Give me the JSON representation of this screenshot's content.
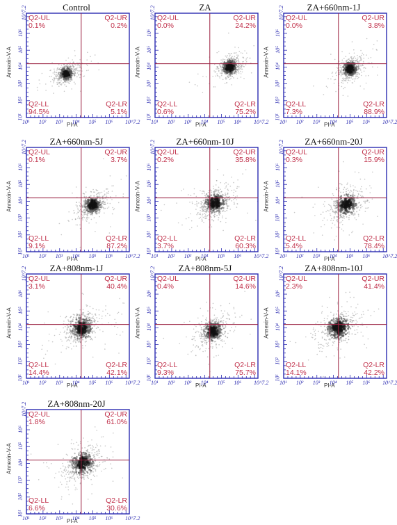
{
  "chart_data": [
    {
      "type": "scatter",
      "title": "Control",
      "xlabel": "PI-A",
      "ylabel": "Annexin-V-A",
      "center": [
        3.4,
        3.6
      ],
      "spread": 0.35,
      "quadrants": {
        "UL": {
          "label": "Q2-UL",
          "value": "0.1%"
        },
        "UR": {
          "label": "Q2-UR",
          "value": "0.2%"
        },
        "LL": {
          "label": "Q2-LL",
          "value": "94.5%"
        },
        "LR": {
          "label": "Q2-LR",
          "value": "5.1%"
        }
      }
    },
    {
      "type": "scatter",
      "title": "ZA",
      "xlabel": "PI-A",
      "ylabel": "Annexin-V-A",
      "center": [
        5.5,
        4.0
      ],
      "spread": 0.4,
      "quadrants": {
        "UL": {
          "label": "Q2-UL",
          "value": "0.0%"
        },
        "UR": {
          "label": "Q2-UR",
          "value": "24.2%"
        },
        "LL": {
          "label": "Q2-LL",
          "value": "0.6%"
        },
        "LR": {
          "label": "Q2-LR",
          "value": "75.2%"
        }
      }
    },
    {
      "type": "scatter",
      "title": "ZA+660nm-1J",
      "xlabel": "PI-A",
      "ylabel": "Annexin-V-A",
      "center": [
        5.0,
        3.9
      ],
      "spread": 0.4,
      "quadrants": {
        "UL": {
          "label": "Q2-UL",
          "value": "0.0%"
        },
        "UR": {
          "label": "Q2-UR",
          "value": "3.8%"
        },
        "LL": {
          "label": "Q2-LL",
          "value": "7.3%"
        },
        "LR": {
          "label": "Q2-LR",
          "value": "88.9%"
        }
      }
    },
    {
      "type": "scatter",
      "title": "ZA+660nm-5J",
      "xlabel": "PI-A",
      "ylabel": "Annexin-V-A",
      "center": [
        5.0,
        3.8
      ],
      "spread": 0.45,
      "quadrants": {
        "UL": {
          "label": "Q2-UL",
          "value": "0.1%"
        },
        "UR": {
          "label": "Q2-UR",
          "value": "3.7%"
        },
        "LL": {
          "label": "Q2-LL",
          "value": "9.1%"
        },
        "LR": {
          "label": "Q2-LR",
          "value": "87.2%"
        }
      }
    },
    {
      "type": "scatter",
      "title": "ZA+660nm-10J",
      "xlabel": "PI-A",
      "ylabel": "Annexin-V-A",
      "center": [
        4.6,
        3.9
      ],
      "spread": 0.55,
      "quadrants": {
        "UL": {
          "label": "Q2-UL",
          "value": "0.2%"
        },
        "UR": {
          "label": "Q2-UR",
          "value": "35.8%"
        },
        "LL": {
          "label": "Q2-LL",
          "value": "3.7%"
        },
        "LR": {
          "label": "Q2-LR",
          "value": "60.3%"
        }
      }
    },
    {
      "type": "scatter",
      "title": "ZA+660nm-20J",
      "xlabel": "PI-A",
      "ylabel": "Annexin-V-A",
      "center": [
        4.8,
        3.8
      ],
      "spread": 0.55,
      "quadrants": {
        "UL": {
          "label": "Q2-UL",
          "value": "0.3%"
        },
        "UR": {
          "label": "Q2-UR",
          "value": "15.9%"
        },
        "LL": {
          "label": "Q2-LL",
          "value": "5.4%"
        },
        "LR": {
          "label": "Q2-LR",
          "value": "78.4%"
        }
      }
    },
    {
      "type": "scatter",
      "title": "ZA+808nm-1J",
      "xlabel": "PI-A",
      "ylabel": "Annexin-V-A",
      "center": [
        4.3,
        4.0
      ],
      "spread": 0.6,
      "quadrants": {
        "UL": {
          "label": "Q2-UL",
          "value": "3.1%"
        },
        "UR": {
          "label": "Q2-UR",
          "value": "40.4%"
        },
        "LL": {
          "label": "Q2-LL",
          "value": "14.4%"
        },
        "LR": {
          "label": "Q2-LR",
          "value": "42.1%"
        }
      }
    },
    {
      "type": "scatter",
      "title": "ZA+808nm-5J",
      "xlabel": "PI-A",
      "ylabel": "Annexin-V-A",
      "center": [
        4.5,
        3.8
      ],
      "spread": 0.5,
      "quadrants": {
        "UL": {
          "label": "Q2-UL",
          "value": "0.4%"
        },
        "UR": {
          "label": "Q2-UR",
          "value": "14.6%"
        },
        "LL": {
          "label": "Q2-LL",
          "value": "9.3%"
        },
        "LR": {
          "label": "Q2-LR",
          "value": "75.7%"
        }
      }
    },
    {
      "type": "scatter",
      "title": "ZA+808nm-10J",
      "xlabel": "PI-A",
      "ylabel": "Annexin-V-A",
      "center": [
        4.3,
        4.0
      ],
      "spread": 0.6,
      "quadrants": {
        "UL": {
          "label": "Q2-UL",
          "value": "2.3%"
        },
        "UR": {
          "label": "Q2-UR",
          "value": "41.4%"
        },
        "LL": {
          "label": "Q2-LL",
          "value": "14.1%"
        },
        "LR": {
          "label": "Q2-LR",
          "value": "42.2%"
        }
      }
    },
    {
      "type": "scatter",
      "title": "ZA+808nm-20J",
      "xlabel": "PI-A",
      "ylabel": "Annexin-V-A",
      "center": [
        4.4,
        4.0
      ],
      "spread": 0.6,
      "quadrants": {
        "UL": {
          "label": "Q2-UL",
          "value": "1.8%"
        },
        "UR": {
          "label": "Q2-UR",
          "value": "61.0%"
        },
        "LL": {
          "label": "Q2-LL",
          "value": "6.6%"
        },
        "LR": {
          "label": "Q2-LR",
          "value": "30.6%"
        }
      }
    }
  ],
  "axis": {
    "x_ticks": [
      "10¹",
      "10²",
      "10³",
      "10⁴",
      "10⁵",
      "10⁶",
      "10^7.2"
    ],
    "y_ticks": [
      "10¹",
      "10²",
      "10³",
      "10⁴",
      "10⁵",
      "10⁶",
      "10^7.2"
    ],
    "range": [
      1,
      7.2
    ],
    "gate": [
      4.3,
      4.2
    ]
  },
  "colors": {
    "frame": "#2a2ab0",
    "gate": "#9a1f3f",
    "label": "#c0304a",
    "dots": "#7a7a7a"
  }
}
